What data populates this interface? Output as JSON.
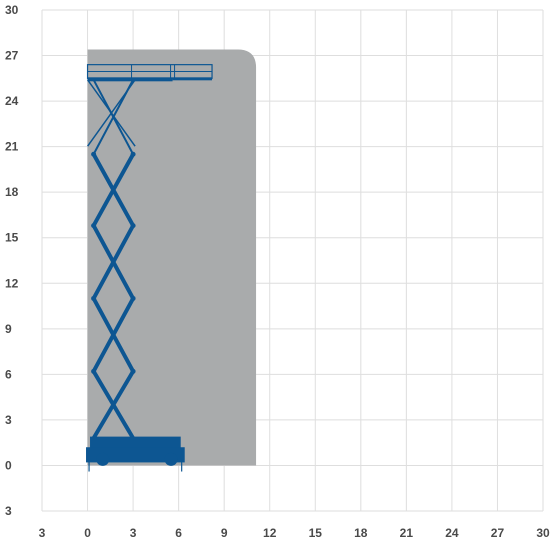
{
  "chart_data": {
    "type": "area",
    "title": "",
    "xlabel": "",
    "ylabel": "",
    "grid": true,
    "legend": "none",
    "xlim": [
      -3,
      30
    ],
    "ylim": [
      -3,
      30
    ],
    "x_tick_labels": [
      "3",
      "0",
      "3",
      "6",
      "9",
      "12",
      "15",
      "18",
      "21",
      "24",
      "27",
      "30"
    ],
    "y_tick_labels": [
      "30",
      "27",
      "24",
      "21",
      "18",
      "15",
      "12",
      "9",
      "6",
      "3",
      "0",
      "3"
    ],
    "x_ticks": [
      -3,
      0,
      3,
      6,
      9,
      12,
      15,
      18,
      21,
      24,
      27,
      30
    ],
    "y_ticks": [
      30,
      27,
      24,
      21,
      18,
      15,
      12,
      9,
      6,
      3,
      0,
      -3
    ],
    "working_envelope": {
      "outline": [
        [
          0,
          0
        ],
        [
          0,
          27.4
        ],
        [
          9.9,
          27.4
        ],
        [
          11.1,
          26.2
        ],
        [
          11.1,
          0
        ]
      ]
    },
    "platform": {
      "deck_height": 25.5,
      "rail_height": 26.4,
      "main_deck_x": [
        0,
        5.6
      ],
      "extension_x": [
        5.6,
        8.2
      ]
    },
    "scissor_stack": {
      "x_range": [
        0.4,
        3.0
      ],
      "joint_heights": [
        1.8,
        6.2,
        11.0,
        15.8,
        20.5,
        25.4
      ]
    },
    "chassis": {
      "x_range": [
        -0.1,
        6.4
      ],
      "wheel_positions": [
        1.0,
        5.5
      ]
    },
    "colors": {
      "envelope": "#a9abac",
      "machine": "#0d5692",
      "grid": "#dedede",
      "tick_text": "#4a4a4a"
    }
  }
}
